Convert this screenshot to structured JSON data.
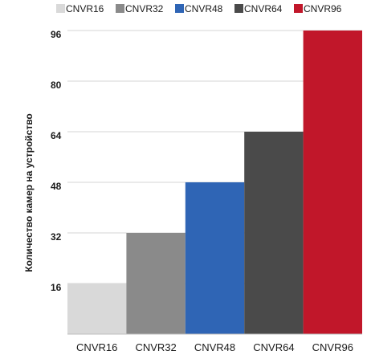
{
  "chart_data": {
    "type": "bar",
    "title": "",
    "xlabel": "",
    "ylabel": "Количество камер на устройство",
    "categories": [
      "CNVR16",
      "CNVR32",
      "CNVR48",
      "CNVR64",
      "CNVR96"
    ],
    "values": [
      16,
      32,
      48,
      64,
      96
    ],
    "colors": [
      "#d9d9d9",
      "#8a8a8a",
      "#2f65b5",
      "#4a4a4a",
      "#c1172a"
    ],
    "yticks": [
      16,
      32,
      48,
      64,
      80,
      96
    ],
    "ylim": [
      0,
      96
    ],
    "grid": true,
    "legend": {
      "position": "top",
      "entries": [
        "CNVR16",
        "CNVR32",
        "CNVR48",
        "CNVR64",
        "CNVR96"
      ]
    }
  }
}
